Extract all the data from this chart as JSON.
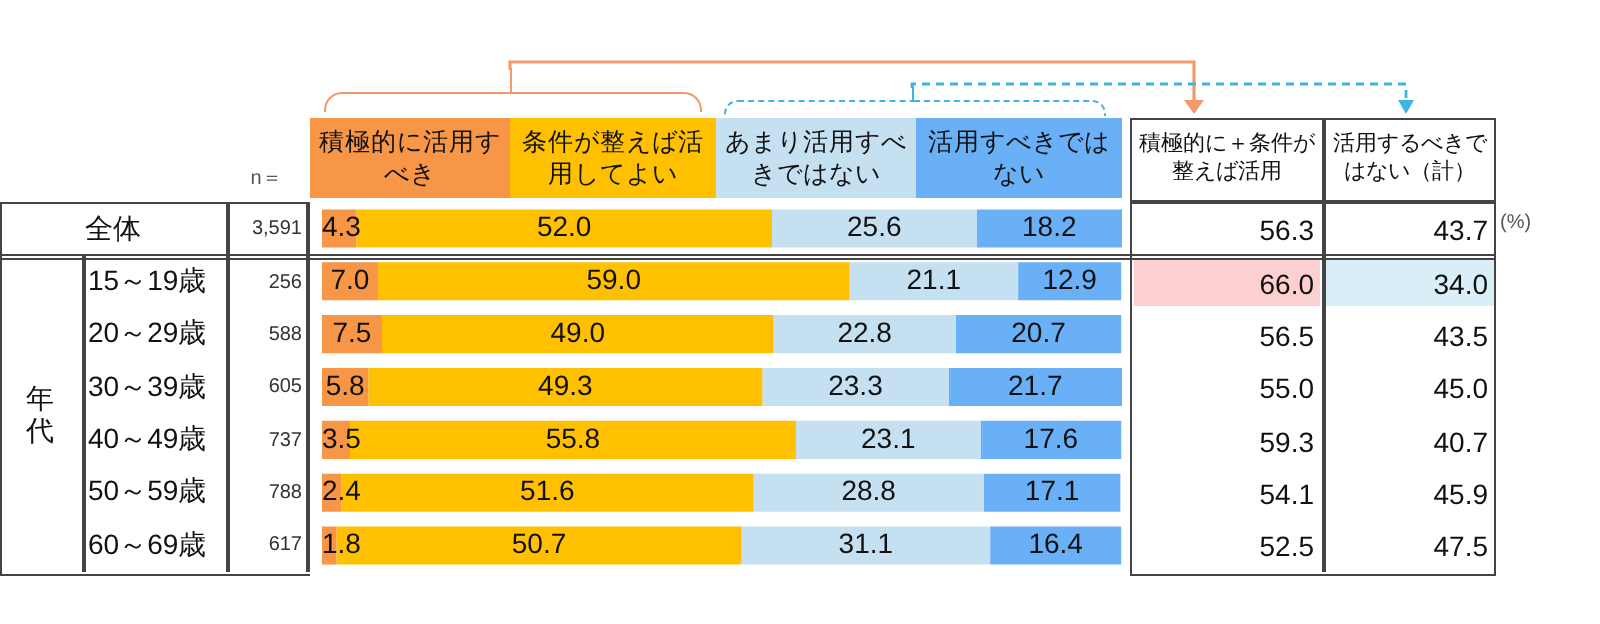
{
  "chart_data": {
    "type": "bar",
    "orientation": "horizontal",
    "stacked": true,
    "legend": "top",
    "categories": [
      "全体",
      "15～19歳",
      "20～29歳",
      "30～39歳",
      "40～49歳",
      "50～59歳",
      "60～69歳"
    ],
    "series": [
      {
        "name": "積極的に活用すべき",
        "color": "#f79646",
        "values": [
          4.3,
          7.0,
          7.5,
          5.8,
          3.5,
          2.4,
          1.8
        ],
        "value_labels": [
          "4.3",
          "7.0",
          "7.5",
          "5.8",
          "3.5",
          "2.4",
          "1.8"
        ]
      },
      {
        "name": "条件が整えば活用してよい",
        "color": "#ffc000",
        "values": [
          52.0,
          59.0,
          49.0,
          49.3,
          55.8,
          51.6,
          50.7
        ],
        "value_labels": [
          "52.0",
          "59.0",
          "49.0",
          "49.3",
          "55.8",
          "51.6",
          "50.7"
        ]
      },
      {
        "name": "あまり活用すべきではない",
        "color": "#c5e1f1",
        "values": [
          25.6,
          21.1,
          22.8,
          23.3,
          23.1,
          28.8,
          31.1
        ],
        "value_labels": [
          "25.6",
          "21.1",
          "22.8",
          "23.3",
          "23.1",
          "28.8",
          "31.1"
        ]
      },
      {
        "name": "活用すべきではない",
        "color": "#6ab0f7",
        "values": [
          18.2,
          12.9,
          20.7,
          21.7,
          17.6,
          17.1,
          16.4
        ],
        "value_labels": [
          "18.2",
          "12.9",
          "20.7",
          "21.7",
          "17.6",
          "17.1",
          "16.4"
        ]
      }
    ],
    "annotations": [
      "n＝",
      "3,591",
      "256",
      "588",
      "605",
      "737",
      "788",
      "617",
      "積極的に＋条件が整えば活用",
      "活用するべきではない（計）",
      "56.3",
      "66.0",
      "56.5",
      "55.0",
      "59.3",
      "54.1",
      "52.5",
      "43.7",
      "34.0",
      "43.5",
      "45.0",
      "40.7",
      "45.9",
      "47.5",
      "(%)",
      "年代"
    ]
  }
}
